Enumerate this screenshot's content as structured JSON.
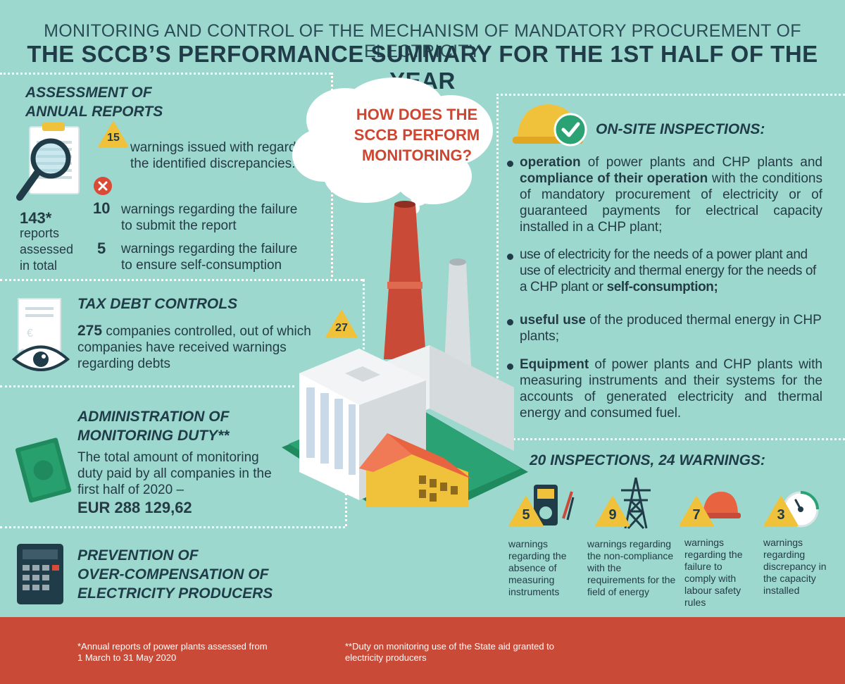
{
  "header": {
    "subtitle": "MONITORING AND CONTROL OF THE MECHANISM OF MANDATORY PROCUREMENT OF ELECTRICITY",
    "title": "THE SCCB’S PERFORMANCE SUMMARY FOR THE 1ST HALF OF THE YEAR"
  },
  "cloud": {
    "question": "HOW DOES THE SCCB PERFORM MONITORING?"
  },
  "annual": {
    "heading1": "ASSESSMENT OF",
    "heading2": "ANNUAL REPORTS",
    "warn_count": "15",
    "warn_text": "warnings issued with regard to the identified discrepancies:",
    "total_num": "143*",
    "total_text": "reports assessed in total",
    "item1_num": "10",
    "item1_text": "warnings regarding the failure to submit the report",
    "item2_num": "5",
    "item2_text": "warnings regarding the failure to ensure self-consumption"
  },
  "tax": {
    "heading": "TAX DEBT CONTROLS",
    "num": "275",
    "text": "companies controlled, out of which companies have received warnings regarding debts",
    "warn_count": "27"
  },
  "duty": {
    "heading1": "ADMINISTRATION OF",
    "heading2": "MONITORING DUTY**",
    "text": "The total amount of monitoring duty paid by all companies in the first half of 2020 –",
    "amount": "EUR 288 129,62"
  },
  "prevention": {
    "heading1": "PREVENTION OF",
    "heading2": "OVER-COMPENSATION OF",
    "heading3": "ELECTRICITY PRODUCERS"
  },
  "onsite": {
    "heading": "ON-SITE INSPECTIONS:",
    "b1_bold1": "operation",
    "b1_text1": " of power plants and CHP plants and ",
    "b1_bold2": "compliance of their operation",
    "b1_text2": " with the conditions of mandatory procurement of electricity or of guaranteed payments for electrical capacity installed in a CHP plant;",
    "b2_text": "use of electricity for the needs of a power plant and use of electricity and thermal energy for the needs of a CHP plant or ",
    "b2_bold": "self-consumption;",
    "b3_bold": "useful use",
    "b3_text": " of the produced thermal energy in CHP plants;",
    "b4_bold": "Equipment",
    "b4_text": " of power plants and CHP plants with measuring instruments and their systems for the accounts of generated electricity and thermal energy and consumed fuel."
  },
  "inspections": {
    "heading": "20 INSPECTIONS, 24 WARNINGS:",
    "items": [
      {
        "num": "5",
        "text": "warnings regarding the absence of measuring instruments"
      },
      {
        "num": "9",
        "text": "warnings regarding the non-compliance with the requirements for the field of energy"
      },
      {
        "num": "7",
        "text": "warnings regarding the failure to comply with labour safety rules"
      },
      {
        "num": "3",
        "text": "warnings regarding discrepancy in the capacity installed"
      }
    ]
  },
  "footer": {
    "note1": "*Annual reports of power plants assessed from 1 March to 31 May 2020",
    "note2": "**Duty on monitoring use of the State aid granted to electricity producers"
  },
  "colors": {
    "background": "#9dd8cf",
    "dark": "#1f3c48",
    "red": "#c94a37",
    "warning": "#f0c13a",
    "accent_red_text": "#d0452f"
  }
}
